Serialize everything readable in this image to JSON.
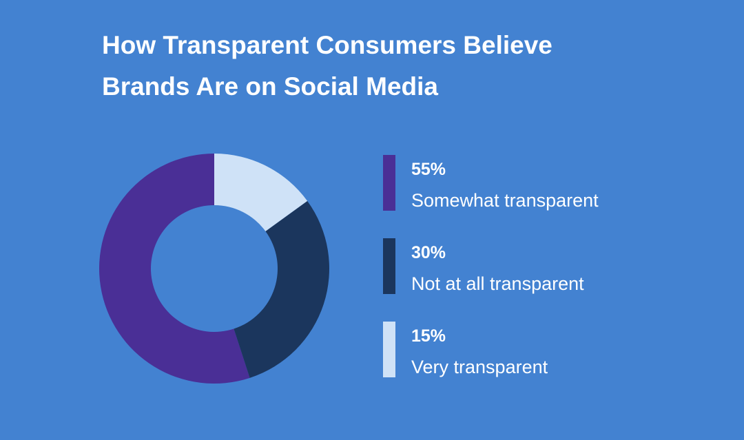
{
  "chart_data": {
    "type": "donut",
    "title": "How Transparent Consumers Believe Brands Are on Social Media",
    "categories": [
      "Somewhat transparent",
      "Not at all transparent",
      "Very transparent"
    ],
    "values": [
      55,
      30,
      15
    ],
    "value_labels": [
      "55%",
      "30%",
      "15%"
    ],
    "colors": [
      "#4a2f96",
      "#1b365d",
      "#cfe2f7"
    ]
  }
}
